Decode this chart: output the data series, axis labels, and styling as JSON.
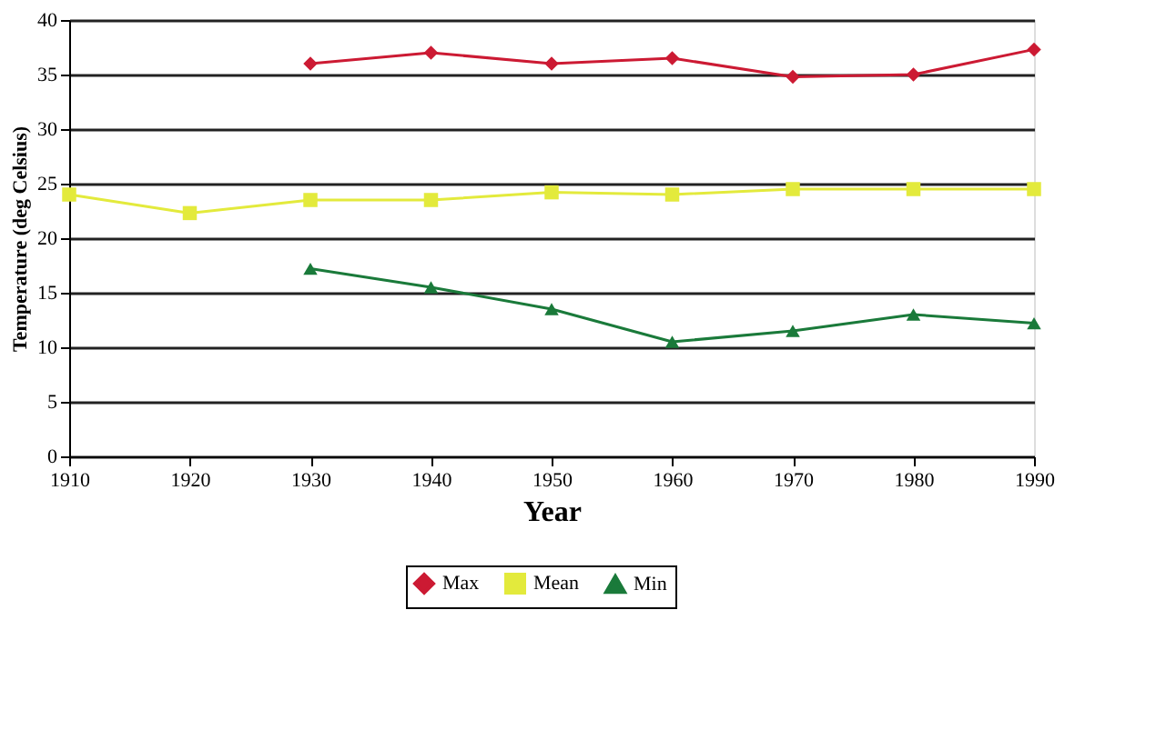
{
  "chart_data": {
    "type": "line",
    "xlabel": "Year",
    "ylabel": "Temperature (deg Celsius)",
    "x": [
      1910,
      1920,
      1930,
      1940,
      1950,
      1960,
      1970,
      1980,
      1990
    ],
    "series": [
      {
        "name": "Max",
        "color": "#cc1a33",
        "marker": "diamond",
        "values": [
          null,
          null,
          36,
          37,
          36,
          36.5,
          34.8,
          35,
          37.3
        ]
      },
      {
        "name": "Mean",
        "color": "#e3ea3c",
        "marker": "square",
        "values": [
          24,
          22.3,
          23.5,
          23.5,
          24.2,
          24,
          24.5,
          24.5,
          24.5
        ]
      },
      {
        "name": "Min",
        "color": "#1a7a3a",
        "marker": "triangle",
        "values": [
          null,
          null,
          17.2,
          15.5,
          13.5,
          10.5,
          11.5,
          13,
          12.2
        ]
      }
    ],
    "xlim": [
      1910,
      1990
    ],
    "xticks": [
      1910,
      1920,
      1930,
      1940,
      1950,
      1960,
      1970,
      1980,
      1990
    ],
    "ylim": [
      0,
      40
    ],
    "yticks": [
      0,
      5,
      10,
      15,
      20,
      25,
      30,
      35,
      40
    ],
    "grid": "y",
    "legend": "bottom",
    "line_style": "solid"
  }
}
